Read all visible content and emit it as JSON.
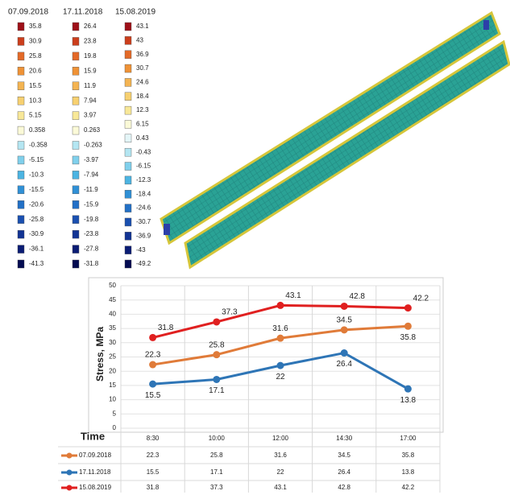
{
  "color_scales": [
    {
      "title": "07.09.2018",
      "labels": [
        35.8,
        30.9,
        25.8,
        20.6,
        15.5,
        10.3,
        5.15,
        0.358,
        -0.358,
        -5.15,
        -10.3,
        -15.5,
        -20.6,
        -25.8,
        -30.9,
        -36.1,
        -41.3
      ]
    },
    {
      "title": "17.11.2018",
      "labels": [
        26.4,
        23.8,
        19.8,
        15.9,
        11.9,
        7.94,
        3.97,
        0.263,
        -0.263,
        -3.97,
        -7.94,
        -11.9,
        -15.9,
        -19.8,
        -23.8,
        -27.8,
        -31.8
      ]
    },
    {
      "title": "15.08.2019",
      "labels": [
        43.1,
        43,
        36.9,
        30.7,
        24.6,
        18.4,
        12.3,
        6.15,
        0.43,
        -0.43,
        -6.15,
        -12.3,
        -18.4,
        -24.6,
        -30.7,
        -36.9,
        -43,
        -49.2
      ]
    }
  ],
  "swatch_colors": [
    "#9e1018",
    "#cc3e1c",
    "#e46a28",
    "#ef9236",
    "#f4b452",
    "#f7d070",
    "#f8e898",
    "#fbfad8",
    "#e4f6f8",
    "#b4e6f2",
    "#80d0ec",
    "#4cb4e2",
    "#3090d6",
    "#2270c6",
    "#1a50b0",
    "#123494",
    "#0a1c74",
    "#040c52"
  ],
  "chart_data": {
    "type": "line",
    "y_label": "Stress, MPa",
    "x_label": "Time",
    "categories": [
      "8:30",
      "10:00",
      "12:00",
      "14:30",
      "17:00"
    ],
    "ylim": [
      0,
      50
    ],
    "yticks": [
      0,
      5,
      10,
      15,
      20,
      25,
      30,
      35,
      40,
      45,
      50
    ],
    "grid": true,
    "series": [
      {
        "name": "07.09.2018",
        "color": "#e07b39",
        "values": [
          22.3,
          25.8,
          31.6,
          34.5,
          35.8
        ]
      },
      {
        "name": "17.11.2018",
        "color": "#2e75b6",
        "values": [
          15.5,
          17.1,
          22,
          26.4,
          13.8
        ]
      },
      {
        "name": "15.08.2019",
        "color": "#e02020",
        "values": [
          31.8,
          37.3,
          43.1,
          42.8,
          42.2
        ]
      }
    ]
  }
}
